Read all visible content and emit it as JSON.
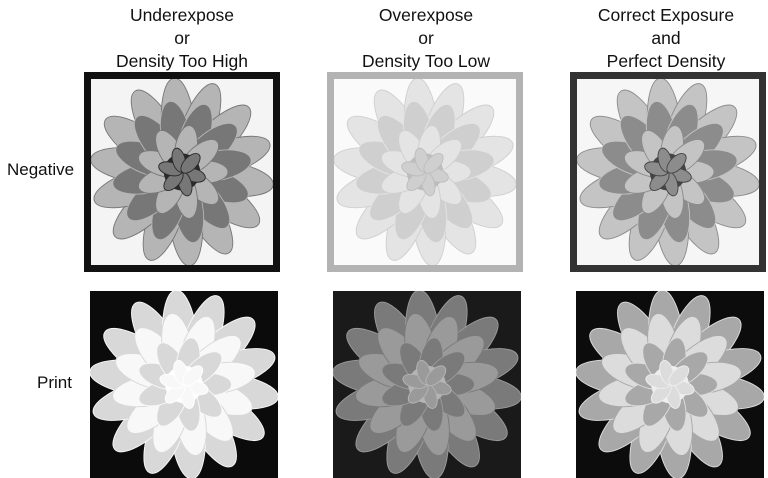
{
  "columns": [
    {
      "id": "underexpose",
      "line1": "Underexpose",
      "line2": "or",
      "line3": "Density Too High",
      "border_color": "#111111"
    },
    {
      "id": "overexpose",
      "line1": "Overexpose",
      "line2": "or",
      "line3": "Density Too Low",
      "border_color": "#b3b3b3"
    },
    {
      "id": "correct",
      "line1": "Correct Exposure",
      "line2": "and",
      "line3": "Perfect Density",
      "border_color": "#333333"
    }
  ],
  "rows": {
    "negative_label": "Negative",
    "print_label": "Print"
  },
  "images": {
    "negative_1": {
      "depicts": "flower-negative-dense",
      "bg": "#f4f4f4",
      "petal": "#777777",
      "petal_edge": "#b5b5b5",
      "center": "#2a2a2a"
    },
    "negative_2": {
      "depicts": "flower-negative-thin",
      "bg": "#fafafa",
      "petal": "#cfcfcf",
      "petal_edge": "#e4e4e4",
      "center": "#bdbdbd"
    },
    "negative_3": {
      "depicts": "flower-negative-correct",
      "bg": "#f6f6f6",
      "petal": "#8c8c8c",
      "petal_edge": "#c4c4c4",
      "center": "#444444"
    },
    "print_1": {
      "depicts": "flower-print-washed-out",
      "bg": "#0b0b0b",
      "petal": "#f8f8f8",
      "petal_edge": "#d8d8d8",
      "center": "#ffffff"
    },
    "print_2": {
      "depicts": "flower-print-muddy",
      "bg": "#1a1a1a",
      "petal": "#9a9a9a",
      "petal_edge": "#7a7a7a",
      "center": "#b5b5b5"
    },
    "print_3": {
      "depicts": "flower-print-correct",
      "bg": "#0c0c0c",
      "petal": "#dcdcdc",
      "petal_edge": "#a8a8a8",
      "center": "#eeeeee"
    }
  }
}
